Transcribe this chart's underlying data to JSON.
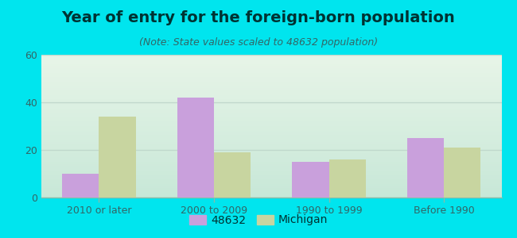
{
  "title": "Year of entry for the foreign-born population",
  "subtitle": "(Note: State values scaled to 48632 population)",
  "categories": [
    "2010 or later",
    "2000 to 2009",
    "1990 to 1999",
    "Before 1990"
  ],
  "values_48632": [
    10,
    42,
    15,
    25
  ],
  "values_michigan": [
    34,
    19,
    16,
    21
  ],
  "bar_color_48632": "#c9a0dc",
  "bar_color_michigan": "#c8d5a0",
  "background_outer": "#00e5ee",
  "background_inner_top": "#e8f5e8",
  "background_inner_bottom": "#c8e8d8",
  "ylim_max": 60,
  "yticks": [
    0,
    20,
    40,
    60
  ],
  "bar_width": 0.32,
  "legend_label_1": "48632",
  "legend_label_2": "Michigan",
  "title_fontsize": 14,
  "subtitle_fontsize": 9,
  "axis_fontsize": 9,
  "legend_fontsize": 10,
  "title_color": "#003333",
  "subtitle_color": "#336666",
  "tick_color": "#336666",
  "grid_color": "#c0d8cc"
}
